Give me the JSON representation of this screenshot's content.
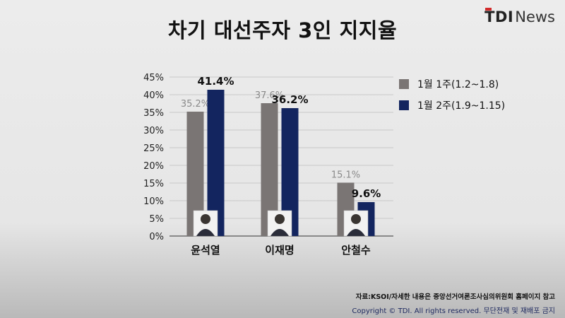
{
  "header": {
    "title": "차기 대선주자 3인 지지율",
    "logo_tdi": "TDI",
    "logo_news": "News"
  },
  "chart_data": {
    "type": "bar",
    "title": "차기 대선주자 3인 지지율",
    "categories": [
      "윤석열",
      "이재명",
      "안철수"
    ],
    "series": [
      {
        "name": "1월 1주(1.2~1.8)",
        "values": [
          35.2,
          37.6,
          15.1
        ],
        "color": "#7a7574",
        "label_color": "#8a8a8a"
      },
      {
        "name": "1월 2주(1.9~1.15)",
        "values": [
          41.4,
          36.2,
          9.6
        ],
        "color": "#13255f",
        "label_color": "#111111"
      }
    ],
    "value_suffix": "%",
    "ylim": [
      0,
      45
    ],
    "yticks": [
      "0%",
      "5%",
      "10%",
      "15%",
      "20%",
      "25%",
      "30%",
      "35%",
      "40%",
      "45%"
    ],
    "grid": true,
    "legend_position": "right"
  },
  "footer": {
    "source": "자료:KSOI/자세한 내용은 중앙선거여론조사심의위원회 홈페이지 참고",
    "copyright": "Copyright © TDI. All rights reserved. 무단전재 및 재배포 금지"
  },
  "colors": {
    "grid": "#c8c8c8",
    "axis": "#555555",
    "photo_bg": "#f2f2f2"
  }
}
